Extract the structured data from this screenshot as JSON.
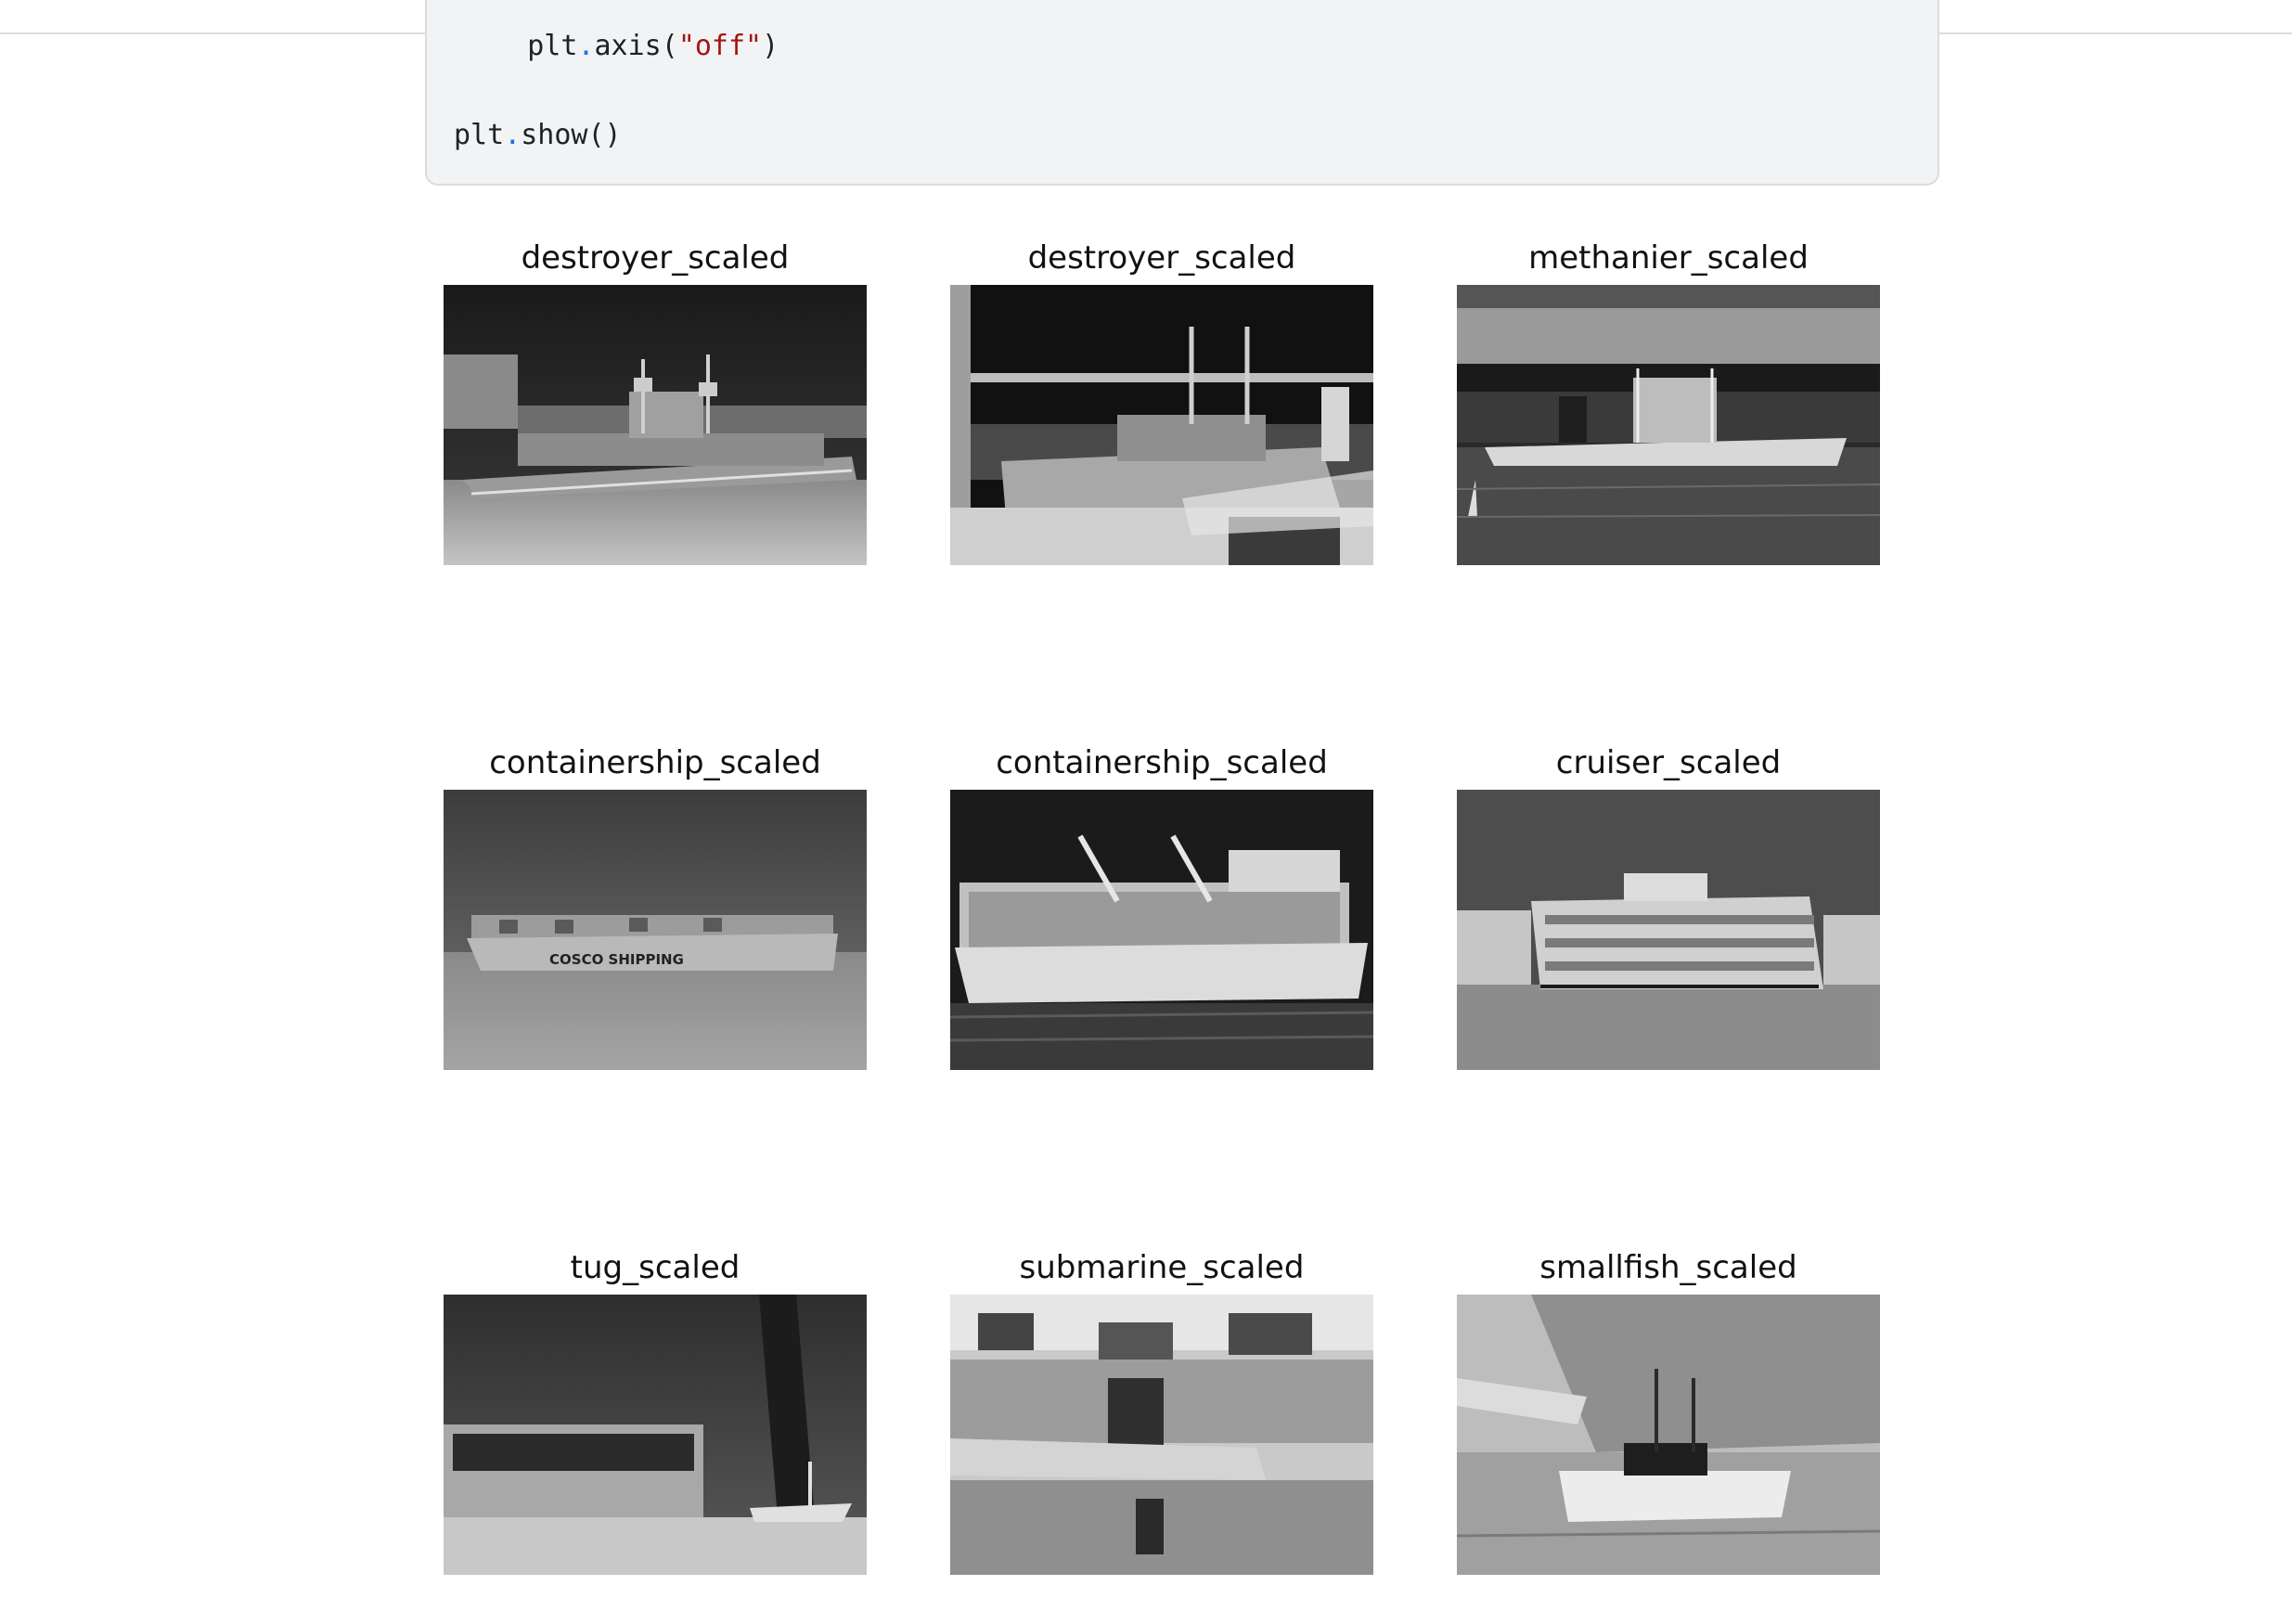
{
  "code": {
    "line1_indent": "    ",
    "line1_obj": "plt",
    "line1_dot": ".",
    "line1_fn": "axis(",
    "line1_arg": "\"off\"",
    "line1_close": ")",
    "line2_obj": "plt",
    "line2_dot": ".",
    "line2_fn": "show()"
  },
  "output": {
    "panels": [
      {
        "title": "destroyer_scaled",
        "image": "destroyer-ship-inverted-grayscale"
      },
      {
        "title": "destroyer_scaled",
        "image": "destroyer-at-dock-inverted-grayscale"
      },
      {
        "title": "methanier_scaled",
        "image": "lng-carrier-inverted-grayscale"
      },
      {
        "title": "containership_scaled",
        "image": "cosco-containership-inverted-grayscale"
      },
      {
        "title": "containership_scaled",
        "image": "containership-cranes-inverted-grayscale"
      },
      {
        "title": "cruiser_scaled",
        "image": "cruise-ship-inverted-grayscale"
      },
      {
        "title": "tug_scaled",
        "image": "tug-dock-inverted-grayscale"
      },
      {
        "title": "submarine_scaled",
        "image": "submarine-harbor-inverted-grayscale"
      },
      {
        "title": "smallfish_scaled",
        "image": "fishing-boat-inverted-grayscale"
      }
    ],
    "image_text": {
      "cosco_hull": "COSCO SHIPPING"
    }
  }
}
